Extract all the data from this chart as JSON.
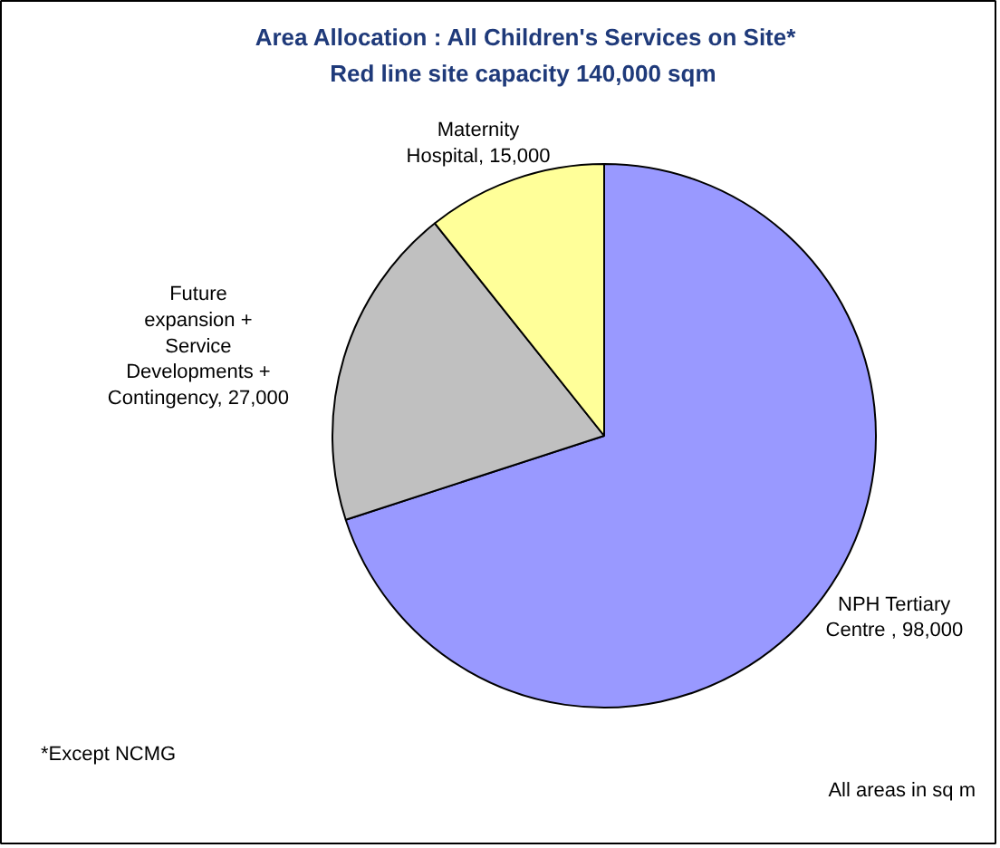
{
  "chart_data": {
    "type": "pie",
    "title": "Area Allocation : All Children's Services on Site*\nRed line  site capacity 140,000 sqm",
    "categories": [
      "NPH Tertiary Centre ",
      "Future expansion + Service Developments + Contingency",
      "Maternity Hospital"
    ],
    "value_labels": [
      "98,000",
      "27,000",
      "15,000"
    ],
    "values": [
      98000,
      27000,
      15000
    ],
    "colors": [
      "#9999ff",
      "#c0c0c0",
      "#ffff99"
    ],
    "annotations": [
      "*Except NCMG",
      "All areas in sq m"
    ]
  }
}
